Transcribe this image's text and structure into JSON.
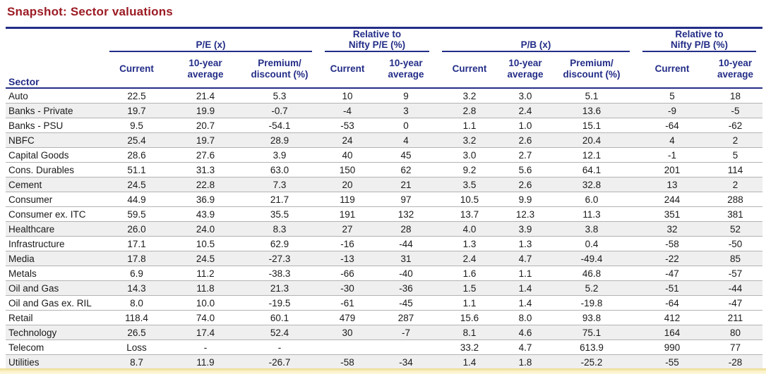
{
  "title": "Snapshot: Sector valuations",
  "colors": {
    "title_red": "#9C1B24",
    "header_navy": "#232D87",
    "stripe_gray": "#EFEFEF",
    "bottom_strip_yellow": "#FBF3CA"
  },
  "table": {
    "sector_header": "Sector",
    "groups": [
      {
        "label": "P/E (x)",
        "columns": [
          "Current",
          "10-year\naverage",
          "Premium/\ndiscount (%)"
        ]
      },
      {
        "label": "Relative to\nNifty P/E (%)",
        "columns": [
          "Current",
          "10-year\naverage"
        ]
      },
      {
        "label": "P/B (x)",
        "columns": [
          "Current",
          "10-year\naverage",
          "Premium/\ndiscount (%)"
        ]
      },
      {
        "label": "Relative to\nNifty P/B (%)",
        "columns": [
          "Current",
          "10-year\naverage"
        ]
      }
    ],
    "rows": [
      {
        "sector": "Auto",
        "shaded": false,
        "values": [
          "22.5",
          "21.4",
          "5.3",
          "10",
          "9",
          "3.2",
          "3.0",
          "5.1",
          "5",
          "18"
        ]
      },
      {
        "sector": "Banks - Private",
        "shaded": true,
        "values": [
          "19.7",
          "19.9",
          "-0.7",
          "-4",
          "3",
          "2.8",
          "2.4",
          "13.6",
          "-9",
          "-5"
        ]
      },
      {
        "sector": "Banks - PSU",
        "shaded": false,
        "values": [
          "9.5",
          "20.7",
          "-54.1",
          "-53",
          "0",
          "1.1",
          "1.0",
          "15.1",
          "-64",
          "-62"
        ]
      },
      {
        "sector": "NBFC",
        "shaded": true,
        "values": [
          "25.4",
          "19.7",
          "28.9",
          "24",
          "4",
          "3.2",
          "2.6",
          "20.4",
          "4",
          "2"
        ]
      },
      {
        "sector": "Capital Goods",
        "shaded": false,
        "values": [
          "28.6",
          "27.6",
          "3.9",
          "40",
          "45",
          "3.0",
          "2.7",
          "12.1",
          "-1",
          "5"
        ]
      },
      {
        "sector": "Cons. Durables",
        "shaded": false,
        "values": [
          "51.1",
          "31.3",
          "63.0",
          "150",
          "62",
          "9.2",
          "5.6",
          "64.1",
          "201",
          "114"
        ]
      },
      {
        "sector": "Cement",
        "shaded": true,
        "values": [
          "24.5",
          "22.8",
          "7.3",
          "20",
          "21",
          "3.5",
          "2.6",
          "32.8",
          "13",
          "2"
        ]
      },
      {
        "sector": "Consumer",
        "shaded": false,
        "values": [
          "44.9",
          "36.9",
          "21.7",
          "119",
          "97",
          "10.5",
          "9.9",
          "6.0",
          "244",
          "288"
        ]
      },
      {
        "sector": "Consumer ex. ITC",
        "shaded": false,
        "values": [
          "59.5",
          "43.9",
          "35.5",
          "191",
          "132",
          "13.7",
          "12.3",
          "11.3",
          "351",
          "381"
        ]
      },
      {
        "sector": "Healthcare",
        "shaded": true,
        "values": [
          "26.0",
          "24.0",
          "8.3",
          "27",
          "28",
          "4.0",
          "3.9",
          "3.8",
          "32",
          "52"
        ]
      },
      {
        "sector": "Infrastructure",
        "shaded": false,
        "values": [
          "17.1",
          "10.5",
          "62.9",
          "-16",
          "-44",
          "1.3",
          "1.3",
          "0.4",
          "-58",
          "-50"
        ]
      },
      {
        "sector": "Media",
        "shaded": true,
        "values": [
          "17.8",
          "24.5",
          "-27.3",
          "-13",
          "31",
          "2.4",
          "4.7",
          "-49.4",
          "-22",
          "85"
        ]
      },
      {
        "sector": "Metals",
        "shaded": false,
        "values": [
          "6.9",
          "11.2",
          "-38.3",
          "-66",
          "-40",
          "1.6",
          "1.1",
          "46.8",
          "-47",
          "-57"
        ]
      },
      {
        "sector": "Oil and Gas",
        "shaded": true,
        "values": [
          "14.3",
          "11.8",
          "21.3",
          "-30",
          "-36",
          "1.5",
          "1.4",
          "5.2",
          "-51",
          "-44"
        ]
      },
      {
        "sector": "Oil and Gas ex. RIL",
        "shaded": false,
        "values": [
          "8.0",
          "10.0",
          "-19.5",
          "-61",
          "-45",
          "1.1",
          "1.4",
          "-19.8",
          "-64",
          "-47"
        ]
      },
      {
        "sector": "Retail",
        "shaded": false,
        "values": [
          "118.4",
          "74.0",
          "60.1",
          "479",
          "287",
          "15.6",
          "8.0",
          "93.8",
          "412",
          "211"
        ]
      },
      {
        "sector": "Technology",
        "shaded": true,
        "values": [
          "26.5",
          "17.4",
          "52.4",
          "30",
          "-7",
          "8.1",
          "4.6",
          "75.1",
          "164",
          "80"
        ]
      },
      {
        "sector": "Telecom",
        "shaded": false,
        "values": [
          "Loss",
          "-",
          "-",
          "",
          "",
          "33.2",
          "4.7",
          "613.9",
          "990",
          "77"
        ]
      },
      {
        "sector": "Utilities",
        "shaded": true,
        "values": [
          "8.7",
          "11.9",
          "-26.7",
          "-58",
          "-34",
          "1.4",
          "1.8",
          "-25.2",
          "-55",
          "-28"
        ]
      }
    ]
  }
}
